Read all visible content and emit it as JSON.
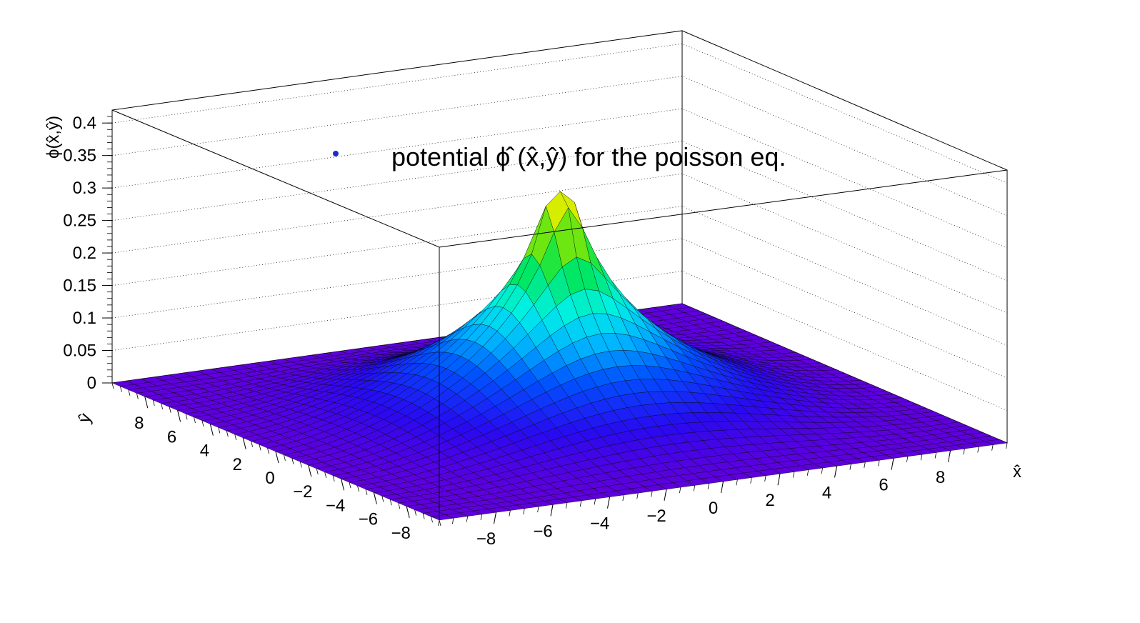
{
  "chart_data": {
    "type": "surface3d",
    "title": "",
    "legend": {
      "entries": [
        {
          "label": "potential ϕ̂ (x̂,ŷ) for the poisson eq.",
          "marker_color": "#1a2bd6"
        }
      ],
      "placement": "top-center"
    },
    "xlabel": "x̂",
    "ylabel": "ŷ",
    "zlabel": "ϕ(x̂,ŷ)",
    "xlim": [
      -10,
      10
    ],
    "ylim": [
      -10,
      10
    ],
    "zlim": [
      0,
      0.42
    ],
    "x_ticks": [
      "−8",
      "−6",
      "−4",
      "−2",
      "0",
      "2",
      "4",
      "6",
      "8"
    ],
    "y_ticks": [
      "8",
      "6",
      "4",
      "2",
      "0",
      "−2",
      "−4",
      "−6",
      "−8"
    ],
    "z_ticks": [
      "0",
      "0.05",
      "0.1",
      "0.15",
      "0.2",
      "0.25",
      "0.3",
      "0.35",
      "0.4"
    ],
    "peak": {
      "x": 0,
      "y": 0,
      "z": 0.34
    },
    "function": "phi(x,y) ≈ peak-shaped potential of a point source, vanishing at the boundary",
    "grid": true,
    "colormap": "rainbow (violet low → red high)"
  }
}
